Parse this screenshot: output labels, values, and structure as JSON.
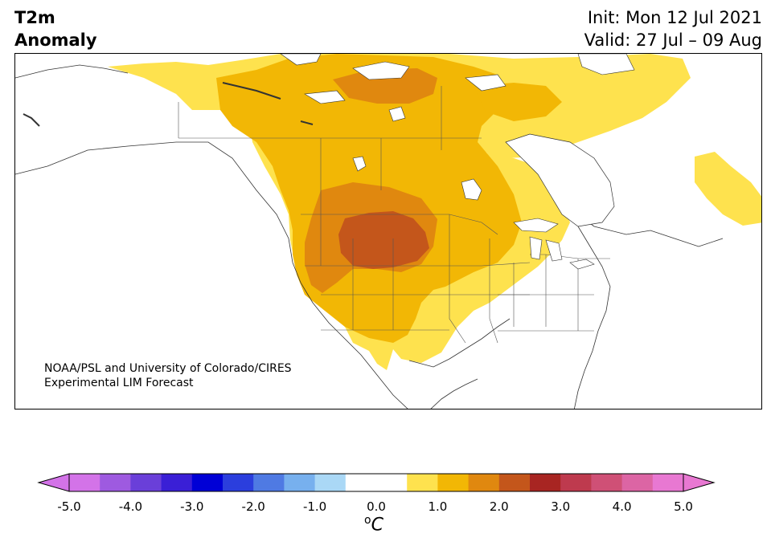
{
  "header": {
    "variable_line1": "T2m",
    "variable_line2": "Anomaly",
    "init_text": "Init: Mon 12 Jul 2021",
    "valid_text": "Valid: 27 Jul – 09 Aug"
  },
  "credit": {
    "line1": "NOAA/PSL and University of Colorado/CIRES",
    "line2": "Experimental LIM Forecast"
  },
  "colorbar": {
    "unit_base": "C",
    "unit_sup": "o",
    "tick_labels": [
      "-5.0",
      "-4.0",
      "-3.0",
      "-2.0",
      "-1.0",
      "0.0",
      "1.0",
      "2.0",
      "3.0",
      "4.0",
      "5.0"
    ],
    "colors": [
      "#d373e8",
      "#9e5ae0",
      "#6a3fd9",
      "#3a1fd6",
      "#0000d6",
      "#2b3edd",
      "#4f7ae3",
      "#77b0ee",
      "#aad8f6",
      "#ffffff",
      "#ffffff",
      "#fee24e",
      "#f2b705",
      "#e0880f",
      "#c4561b",
      "#a82522",
      "#be3a4e",
      "#cf5076",
      "#dc65a4",
      "#e878d2"
    ],
    "under_color": "#d373e8",
    "over_color": "#e878d2"
  },
  "map": {
    "anomaly_colors": {
      "plus_0_5_to_1": "#fee24e",
      "plus_1_to_1_5": "#f2b705",
      "plus_1_5_to_2": "#e0880f",
      "plus_2_to_2_5": "#c4561b"
    }
  }
}
